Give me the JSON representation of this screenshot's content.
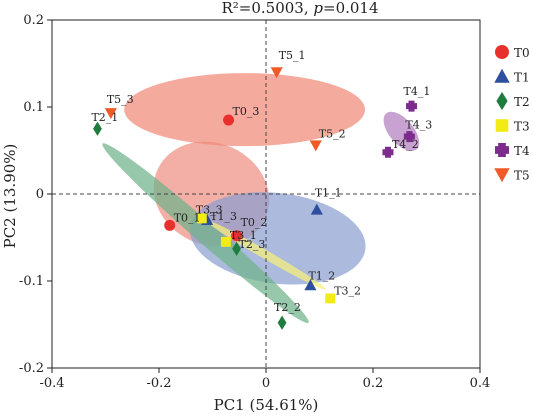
{
  "chart_data": {
    "type": "scatter",
    "title": "R²=0.5003, p=0.014",
    "title_prefix": "R²=0.5003, ",
    "title_p": "p",
    "title_suffix": "=0.014",
    "xlabel": "PC1 (54.61%)",
    "ylabel": "PC2 (13.90%)",
    "xlim": [
      -0.4,
      0.4
    ],
    "ylim": [
      -0.2,
      0.2
    ],
    "xticks": [
      "-0.4",
      "-0.2",
      "0",
      "0.2",
      "0.4"
    ],
    "yticks": [
      "-0.2",
      "-0.1",
      "0",
      "0.1",
      "0.2"
    ],
    "grid": false,
    "zero_lines": "dashed",
    "legend_position": "right",
    "series": [
      {
        "name": "T0",
        "marker": "circle",
        "color": "#e8302d",
        "ellipse_color": "#ef8f84",
        "points": [
          {
            "label": "T0_3",
            "x": -0.07,
            "y": 0.085
          },
          {
            "label": "T0_1",
            "x": -0.18,
            "y": -0.036
          },
          {
            "label": "T0_2",
            "x": -0.055,
            "y": -0.048
          }
        ],
        "ellipse": {
          "cx": -0.102,
          "cy": 0.0,
          "rx": 0.095,
          "ry": 0.068,
          "angle": -65
        }
      },
      {
        "name": "T1",
        "marker": "triangle-up",
        "color": "#2e4e9e",
        "ellipse_color": "#8b9fd0",
        "points": [
          {
            "label": "T1_1",
            "x": 0.095,
            "y": -0.018
          },
          {
            "label": "T1_2",
            "x": 0.083,
            "y": -0.105
          },
          {
            "label": "T1_3",
            "x": -0.11,
            "y": -0.03
          }
        ],
        "ellipse": {
          "cx": 0.022,
          "cy": -0.051,
          "rx": 0.165,
          "ry": 0.052,
          "angle": 7
        }
      },
      {
        "name": "T2",
        "marker": "diamond",
        "color": "#1e7d3c",
        "ellipse_color": "#6fb38a",
        "points": [
          {
            "label": "T2_1",
            "x": -0.315,
            "y": 0.075
          },
          {
            "label": "T2_2",
            "x": 0.03,
            "y": -0.148
          },
          {
            "label": "T2_3",
            "x": -0.055,
            "y": -0.063
          }
        ],
        "ellipse": {
          "cx": -0.113,
          "cy": -0.045,
          "rx": 0.255,
          "ry": 0.012,
          "angle": 41
        }
      },
      {
        "name": "T3",
        "marker": "square",
        "color": "#f2ec14",
        "ellipse_color": "#f6f07a",
        "points": [
          {
            "label": "T3_3",
            "x": -0.12,
            "y": -0.028
          },
          {
            "label": "T3_1",
            "x": -0.075,
            "y": -0.055
          },
          {
            "label": "T3_2",
            "x": 0.12,
            "y": -0.12
          }
        ],
        "ellipse": {
          "cx": 0.0,
          "cy": -0.07,
          "rx": 0.13,
          "ry": 0.005,
          "angle": 30
        }
      },
      {
        "name": "T4",
        "marker": "plus",
        "color": "#7b2c8c",
        "ellipse_color": "#b37fc0",
        "points": [
          {
            "label": "T4_1",
            "x": 0.272,
            "y": 0.101
          },
          {
            "label": "T4_2",
            "x": 0.228,
            "y": 0.048
          },
          {
            "label": "T4_3",
            "x": 0.268,
            "y": 0.066
          }
        ],
        "ellipse": {
          "cx": 0.253,
          "cy": 0.072,
          "rx": 0.044,
          "ry": 0.014,
          "angle": 50
        }
      },
      {
        "name": "T5",
        "marker": "triangle-down",
        "color": "#f05a28",
        "ellipse_color": "#f08a78",
        "points": [
          {
            "label": "T5_1",
            "x": 0.02,
            "y": 0.14
          },
          {
            "label": "T5_3",
            "x": -0.29,
            "y": 0.093
          },
          {
            "label": "T5_2",
            "x": 0.093,
            "y": 0.056
          }
        ],
        "ellipse": {
          "cx": -0.04,
          "cy": 0.097,
          "rx": 0.225,
          "ry": 0.042,
          "angle": 0
        }
      }
    ]
  }
}
